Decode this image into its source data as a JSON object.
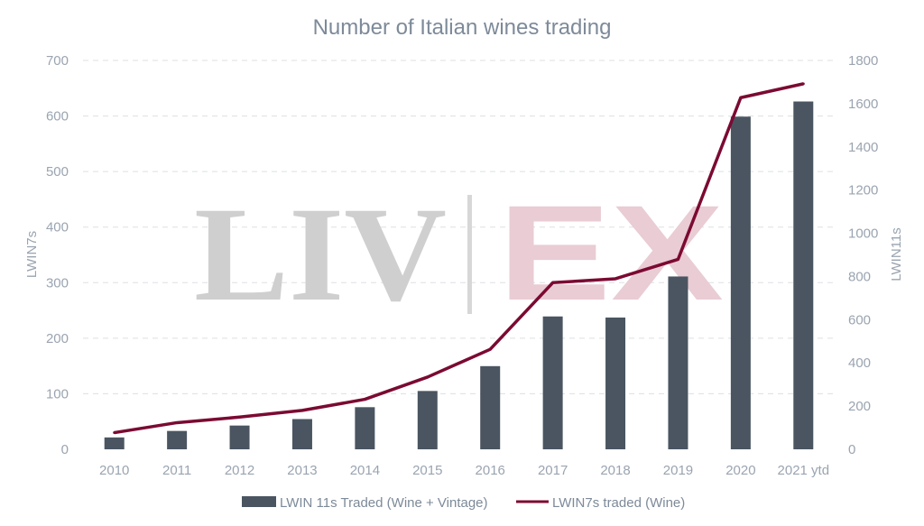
{
  "chart_data": {
    "type": "bar+line",
    "title": "Number of Italian wines trading",
    "categories": [
      "2010",
      "2011",
      "2012",
      "2013",
      "2014",
      "2015",
      "2016",
      "2017",
      "2018",
      "2019",
      "2020",
      "2021 ytd"
    ],
    "y_left": {
      "label": "LWIN7s",
      "min": 0,
      "max": 700,
      "ticks": [
        0,
        100,
        200,
        300,
        400,
        500,
        600,
        700
      ]
    },
    "y_right": {
      "label": "LWIN11s",
      "min": 0,
      "max": 1800,
      "ticks": [
        0,
        200,
        400,
        600,
        800,
        1000,
        1200,
        1400,
        1600,
        1800
      ]
    },
    "series": [
      {
        "name": "LWIN 11s Traded (Wine + Vintage)",
        "type": "bar",
        "axis": "right",
        "color": "#4a5561",
        "values": [
          55,
          85,
          110,
          140,
          195,
          270,
          385,
          615,
          610,
          800,
          1540,
          1610
        ]
      },
      {
        "name": "LWIN7s traded (Wine)",
        "type": "line",
        "axis": "left",
        "color": "#7b0a32",
        "values": [
          30,
          48,
          58,
          70,
          90,
          130,
          180,
          300,
          307,
          342,
          633,
          658
        ]
      }
    ],
    "grid": true,
    "legend_position": "bottom"
  },
  "watermark": {
    "left": "LIV",
    "right": "EX"
  }
}
